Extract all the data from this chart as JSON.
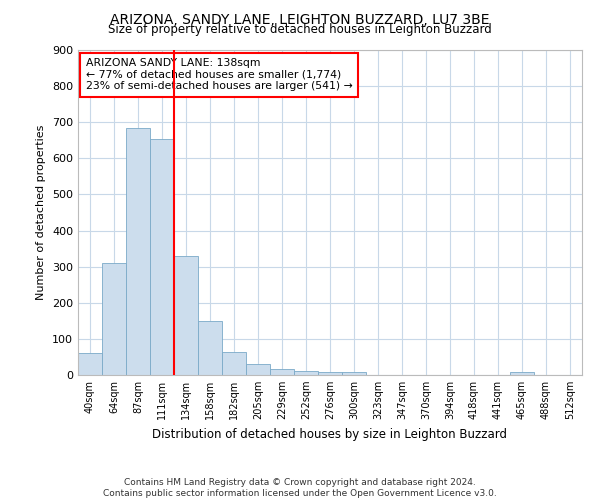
{
  "title": "ARIZONA, SANDY LANE, LEIGHTON BUZZARD, LU7 3BE",
  "subtitle": "Size of property relative to detached houses in Leighton Buzzard",
  "xlabel": "Distribution of detached houses by size in Leighton Buzzard",
  "ylabel": "Number of detached properties",
  "footer_line1": "Contains HM Land Registry data © Crown copyright and database right 2024.",
  "footer_line2": "Contains public sector information licensed under the Open Government Licence v3.0.",
  "annotation_line1": "ARIZONA SANDY LANE: 138sqm",
  "annotation_line2": "← 77% of detached houses are smaller (1,774)",
  "annotation_line3": "23% of semi-detached houses are larger (541) →",
  "bar_color": "#ccdded",
  "bar_edge_color": "#7aaac8",
  "categories": [
    "40sqm",
    "64sqm",
    "87sqm",
    "111sqm",
    "134sqm",
    "158sqm",
    "182sqm",
    "205sqm",
    "229sqm",
    "252sqm",
    "276sqm",
    "300sqm",
    "323sqm",
    "347sqm",
    "370sqm",
    "394sqm",
    "418sqm",
    "441sqm",
    "465sqm",
    "488sqm",
    "512sqm"
  ],
  "values": [
    62,
    310,
    685,
    653,
    330,
    150,
    65,
    30,
    18,
    11,
    8,
    8,
    0,
    0,
    0,
    0,
    0,
    0,
    8,
    0,
    0
  ],
  "ylim": [
    0,
    900
  ],
  "yticks": [
    0,
    100,
    200,
    300,
    400,
    500,
    600,
    700,
    800,
    900
  ],
  "red_line_category_index": 4,
  "grid_color": "#c8d8e8",
  "title_fontsize": 10,
  "subtitle_fontsize": 9
}
